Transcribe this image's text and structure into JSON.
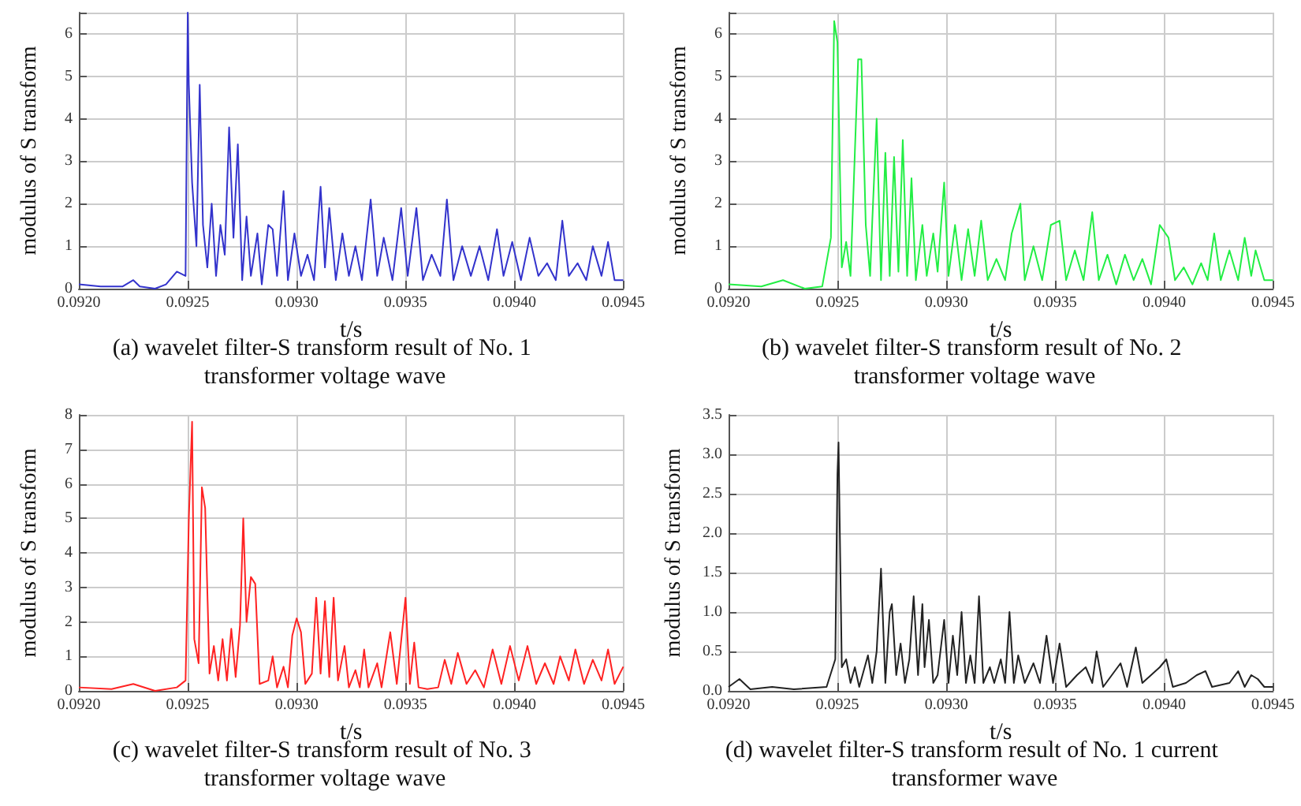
{
  "chart_data": [
    {
      "type": "line",
      "title": "(a) wavelet filter-S transform result of No. 1 transformer voltage wave",
      "xlabel": "t/s",
      "ylabel": "modulus of S transform",
      "grid": true,
      "xlim": [
        0.092,
        0.0945
      ],
      "xticks": [
        {
          "value": 0.092,
          "label": "0.0920"
        },
        {
          "value": 0.0925,
          "label": "0.0925"
        },
        {
          "value": 0.093,
          "label": "0.0930"
        },
        {
          "value": 0.0935,
          "label": "0.0935"
        },
        {
          "value": 0.094,
          "label": "0.0940"
        },
        {
          "value": 0.0945,
          "label": "0.0945"
        }
      ],
      "ylim": [
        0,
        6.5
      ],
      "yticks": [
        0,
        1,
        2,
        3,
        4,
        5,
        6
      ],
      "series": [
        {
          "color": "#3333cc",
          "x": [
            0.092,
            0.0921,
            0.0922,
            0.09225,
            0.09228,
            0.09235,
            0.0924,
            0.09245,
            0.09249,
            0.0925,
            0.092505,
            0.09252,
            0.09254,
            0.092555,
            0.09257,
            0.09259,
            0.09261,
            0.09263,
            0.09265,
            0.09267,
            0.09269,
            0.09271,
            0.09273,
            0.09275,
            0.09277,
            0.09279,
            0.09282,
            0.09284,
            0.09287,
            0.09289,
            0.09291,
            0.09294,
            0.09296,
            0.09299,
            0.09302,
            0.09305,
            0.09308,
            0.09311,
            0.09313,
            0.09315,
            0.09318,
            0.09321,
            0.09324,
            0.09327,
            0.0933,
            0.09334,
            0.09337,
            0.0934,
            0.09344,
            0.09348,
            0.09351,
            0.09355,
            0.09358,
            0.09362,
            0.09366,
            0.09369,
            0.09372,
            0.09376,
            0.0938,
            0.09384,
            0.09388,
            0.09392,
            0.09395,
            0.09399,
            0.09403,
            0.09407,
            0.09411,
            0.09415,
            0.09419,
            0.09422,
            0.09425,
            0.09429,
            0.09433,
            0.09436,
            0.0944,
            0.09443,
            0.09446,
            0.0945
          ],
          "values": [
            0.1,
            0.05,
            0.05,
            0.2,
            0.05,
            0.0,
            0.1,
            0.4,
            0.3,
            6.5,
            4.8,
            2.5,
            1.0,
            4.8,
            1.5,
            0.5,
            2.0,
            0.3,
            1.5,
            0.8,
            3.8,
            1.2,
            3.4,
            0.2,
            1.7,
            0.3,
            1.3,
            0.1,
            1.5,
            1.4,
            0.3,
            2.3,
            0.2,
            1.3,
            0.3,
            0.8,
            0.2,
            2.4,
            0.5,
            1.9,
            0.2,
            1.3,
            0.3,
            1.0,
            0.2,
            2.1,
            0.3,
            1.2,
            0.2,
            1.9,
            0.3,
            1.9,
            0.2,
            0.8,
            0.3,
            2.1,
            0.2,
            1.0,
            0.3,
            1.0,
            0.2,
            1.4,
            0.3,
            1.1,
            0.2,
            1.2,
            0.3,
            0.6,
            0.2,
            1.6,
            0.3,
            0.6,
            0.2,
            1.0,
            0.3,
            1.1,
            0.2,
            0.2
          ]
        }
      ]
    },
    {
      "type": "line",
      "title": "(b) wavelet filter-S transform result of No. 2 transformer voltage wave",
      "xlabel": "t/s",
      "ylabel": "modulus of S transform",
      "grid": true,
      "xlim": [
        0.092,
        0.0945
      ],
      "xticks": [
        {
          "value": 0.092,
          "label": "0.0920"
        },
        {
          "value": 0.0925,
          "label": "0.0925"
        },
        {
          "value": 0.093,
          "label": "0.0930"
        },
        {
          "value": 0.0935,
          "label": "0.0935"
        },
        {
          "value": 0.094,
          "label": "0.0940"
        },
        {
          "value": 0.0945,
          "label": "0.0945"
        }
      ],
      "ylim": [
        0,
        6.5
      ],
      "yticks": [
        0,
        1,
        2,
        3,
        4,
        5,
        6
      ],
      "series": [
        {
          "color": "#22ee44",
          "x": [
            0.092,
            0.09215,
            0.09225,
            0.09235,
            0.09243,
            0.09247,
            0.092485,
            0.0925,
            0.09252,
            0.09254,
            0.09256,
            0.092595,
            0.09261,
            0.09263,
            0.09265,
            0.09266,
            0.09268,
            0.0927,
            0.09272,
            0.09274,
            0.09276,
            0.09278,
            0.0928,
            0.09282,
            0.09284,
            0.09286,
            0.09289,
            0.09291,
            0.09294,
            0.09296,
            0.09299,
            0.09301,
            0.09304,
            0.09307,
            0.0931,
            0.09313,
            0.09316,
            0.09319,
            0.09323,
            0.09327,
            0.0933,
            0.09334,
            0.09336,
            0.0934,
            0.09344,
            0.09348,
            0.09352,
            0.09355,
            0.09359,
            0.09363,
            0.09367,
            0.0937,
            0.09374,
            0.09378,
            0.09382,
            0.09386,
            0.0939,
            0.09394,
            0.09398,
            0.09402,
            0.09405,
            0.09409,
            0.09413,
            0.09417,
            0.0942,
            0.09423,
            0.09426,
            0.0943,
            0.09434,
            0.09437,
            0.0944,
            0.09442,
            0.09446,
            0.0945
          ],
          "values": [
            0.1,
            0.05,
            0.2,
            0.0,
            0.05,
            1.2,
            6.3,
            5.8,
            0.5,
            1.1,
            0.3,
            5.4,
            5.4,
            1.5,
            0.3,
            1.6,
            4.0,
            0.2,
            3.2,
            0.3,
            3.1,
            0.4,
            3.5,
            0.3,
            2.6,
            0.2,
            1.5,
            0.3,
            1.3,
            0.4,
            2.5,
            0.3,
            1.5,
            0.2,
            1.4,
            0.3,
            1.6,
            0.2,
            0.7,
            0.2,
            1.3,
            2.0,
            0.2,
            1.0,
            0.2,
            1.5,
            1.6,
            0.2,
            0.9,
            0.2,
            1.8,
            0.2,
            0.8,
            0.1,
            0.8,
            0.2,
            0.7,
            0.1,
            1.5,
            1.2,
            0.2,
            0.5,
            0.1,
            0.6,
            0.2,
            1.3,
            0.2,
            0.9,
            0.2,
            1.2,
            0.3,
            0.9,
            0.2,
            0.2
          ]
        }
      ]
    },
    {
      "type": "line",
      "title": "(c) wavelet filter-S transform result of No. 3 transformer voltage wave",
      "xlabel": "t/s",
      "ylabel": "modulus of S transform",
      "grid": true,
      "xlim": [
        0.092,
        0.0945
      ],
      "xticks": [
        {
          "value": 0.092,
          "label": "0.0920"
        },
        {
          "value": 0.0925,
          "label": "0.0925"
        },
        {
          "value": 0.093,
          "label": "0.0930"
        },
        {
          "value": 0.0935,
          "label": "0.0935"
        },
        {
          "value": 0.094,
          "label": "0.0940"
        },
        {
          "value": 0.0945,
          "label": "0.0945"
        }
      ],
      "ylim": [
        0,
        8
      ],
      "yticks": [
        0,
        1,
        2,
        3,
        4,
        5,
        6,
        7,
        8
      ],
      "series": [
        {
          "color": "#ff2222",
          "x": [
            0.092,
            0.09215,
            0.09225,
            0.09235,
            0.09245,
            0.09249,
            0.092505,
            0.09252,
            0.09253,
            0.09255,
            0.092565,
            0.09258,
            0.0926,
            0.09262,
            0.09264,
            0.09266,
            0.09268,
            0.0927,
            0.09272,
            0.09274,
            0.092755,
            0.09277,
            0.09279,
            0.09281,
            0.09283,
            0.09287,
            0.09289,
            0.09291,
            0.09294,
            0.09296,
            0.09298,
            0.093,
            0.09302,
            0.09304,
            0.09307,
            0.09309,
            0.09311,
            0.09313,
            0.09315,
            0.09317,
            0.09319,
            0.09322,
            0.09324,
            0.09327,
            0.09329,
            0.09331,
            0.09333,
            0.09337,
            0.09339,
            0.09343,
            0.09346,
            0.0935,
            0.09352,
            0.09354,
            0.09356,
            0.0936,
            0.09365,
            0.09368,
            0.09371,
            0.09374,
            0.09378,
            0.09382,
            0.09386,
            0.0939,
            0.09394,
            0.09398,
            0.09402,
            0.09406,
            0.0941,
            0.09414,
            0.09418,
            0.09421,
            0.09425,
            0.09428,
            0.09432,
            0.09436,
            0.0944,
            0.09443,
            0.09446,
            0.0945
          ],
          "values": [
            0.1,
            0.05,
            0.2,
            0.0,
            0.1,
            0.3,
            5.0,
            7.8,
            1.5,
            0.8,
            5.9,
            5.3,
            0.5,
            1.3,
            0.3,
            1.5,
            0.3,
            1.8,
            0.4,
            1.9,
            5.0,
            2.0,
            3.3,
            3.1,
            0.2,
            0.3,
            1.0,
            0.1,
            0.7,
            0.1,
            1.6,
            2.1,
            1.7,
            0.2,
            0.5,
            2.7,
            0.5,
            2.6,
            0.4,
            2.7,
            0.3,
            1.3,
            0.1,
            0.6,
            0.1,
            1.2,
            0.1,
            0.8,
            0.1,
            1.7,
            0.2,
            2.7,
            0.2,
            1.4,
            0.1,
            0.05,
            0.1,
            0.9,
            0.2,
            1.1,
            0.2,
            0.6,
            0.1,
            1.2,
            0.2,
            1.3,
            0.3,
            1.3,
            0.2,
            0.8,
            0.2,
            1.0,
            0.3,
            1.2,
            0.2,
            0.9,
            0.3,
            1.2,
            0.2,
            0.7
          ]
        }
      ]
    },
    {
      "type": "line",
      "title": "(d) wavelet filter-S transform result of No. 1 current transformer wave",
      "xlabel": "t/s",
      "ylabel": "modulus of S transform",
      "grid": true,
      "xlim": [
        0.092,
        0.0945
      ],
      "xticks": [
        {
          "value": 0.092,
          "label": "0.0920"
        },
        {
          "value": 0.0925,
          "label": "0.0925"
        },
        {
          "value": 0.093,
          "label": "0.0930"
        },
        {
          "value": 0.0935,
          "label": "0.0935"
        },
        {
          "value": 0.094,
          "label": "0.0940"
        },
        {
          "value": 0.0945,
          "label": "0.0945"
        }
      ],
      "ylim": [
        0,
        3.5
      ],
      "yticks": [
        {
          "value": 0,
          "label": "0.0"
        },
        0.5,
        {
          "value": 1,
          "label": "1.0"
        },
        1.5,
        {
          "value": 2,
          "label": "2.0"
        },
        2.5,
        {
          "value": 3,
          "label": "3.0"
        },
        3.5
      ],
      "series": [
        {
          "color": "#222222",
          "x": [
            0.092,
            0.09205,
            0.0921,
            0.0922,
            0.0923,
            0.09245,
            0.09249,
            0.0925,
            0.092505,
            0.09252,
            0.09254,
            0.09256,
            0.09258,
            0.0926,
            0.09264,
            0.09266,
            0.09268,
            0.0927,
            0.09272,
            0.09274,
            0.09275,
            0.09277,
            0.09279,
            0.09281,
            0.09283,
            0.09285,
            0.09287,
            0.09289,
            0.0929,
            0.09292,
            0.09294,
            0.09296,
            0.09299,
            0.09301,
            0.09303,
            0.09305,
            0.09307,
            0.09309,
            0.09311,
            0.09313,
            0.09315,
            0.09317,
            0.0932,
            0.09322,
            0.09325,
            0.09327,
            0.09329,
            0.09331,
            0.09333,
            0.09336,
            0.0934,
            0.09343,
            0.09346,
            0.09349,
            0.09352,
            0.09355,
            0.0936,
            0.09364,
            0.09367,
            0.09369,
            0.09372,
            0.09376,
            0.0938,
            0.09383,
            0.09387,
            0.0939,
            0.09394,
            0.09398,
            0.09401,
            0.09404,
            0.0941,
            0.09415,
            0.09419,
            0.09422,
            0.0943,
            0.09434,
            0.09437,
            0.0944,
            0.09443,
            0.09446,
            0.0945
          ],
          "values": [
            0.05,
            0.15,
            0.02,
            0.05,
            0.02,
            0.05,
            0.4,
            2.75,
            3.15,
            0.3,
            0.4,
            0.1,
            0.3,
            0.05,
            0.45,
            0.1,
            0.5,
            1.55,
            0.1,
            1.0,
            1.1,
            0.2,
            0.6,
            0.1,
            0.4,
            1.2,
            0.2,
            1.1,
            0.3,
            0.9,
            0.1,
            0.2,
            0.9,
            0.1,
            0.7,
            0.2,
            1.0,
            0.1,
            0.45,
            0.1,
            1.2,
            0.1,
            0.3,
            0.1,
            0.4,
            0.1,
            1.0,
            0.1,
            0.45,
            0.1,
            0.35,
            0.1,
            0.7,
            0.1,
            0.6,
            0.05,
            0.2,
            0.3,
            0.1,
            0.5,
            0.05,
            0.2,
            0.35,
            0.05,
            0.55,
            0.1,
            0.2,
            0.3,
            0.4,
            0.05,
            0.1,
            0.2,
            0.25,
            0.05,
            0.1,
            0.25,
            0.05,
            0.2,
            0.15,
            0.05,
            0.05
          ]
        }
      ]
    }
  ]
}
